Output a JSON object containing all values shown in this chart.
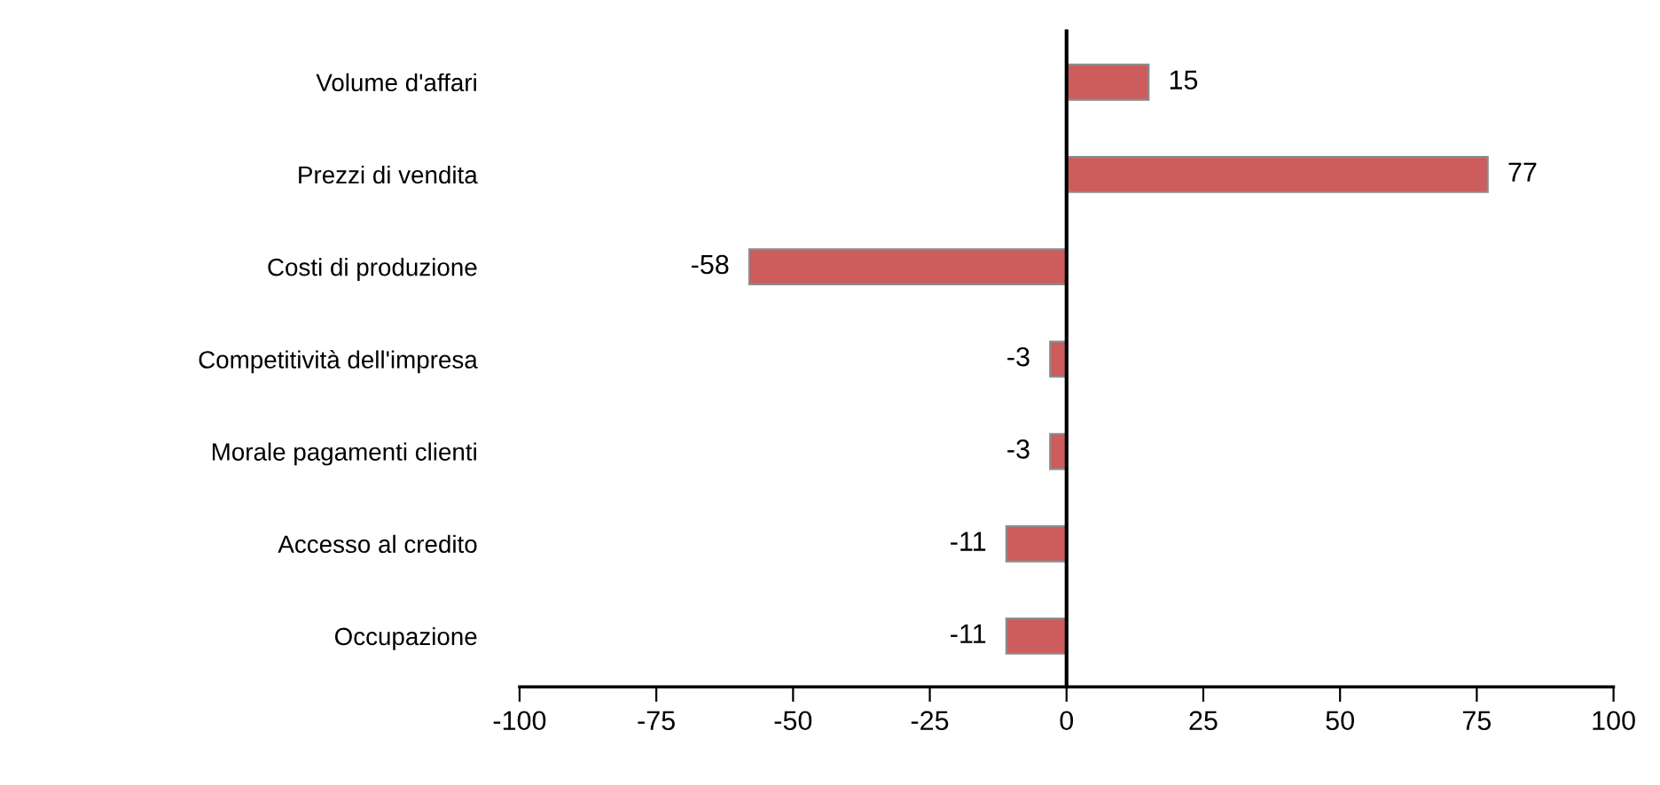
{
  "chart_data": {
    "type": "bar",
    "orientation": "horizontal",
    "categories": [
      "Volume d'affari",
      "Prezzi di vendita",
      "Costi di produzione",
      "Competitività dell'impresa",
      "Morale pagamenti clienti",
      "Accesso al credito",
      "Occupazione"
    ],
    "values": [
      15,
      77,
      -58,
      -3,
      -3,
      -11,
      -11
    ],
    "color": "#cd5c5c",
    "xlim": [
      -100,
      100
    ],
    "xticks": [
      -100,
      -75,
      -50,
      -25,
      0,
      25,
      50,
      75,
      100
    ],
    "data_labels": true
  }
}
